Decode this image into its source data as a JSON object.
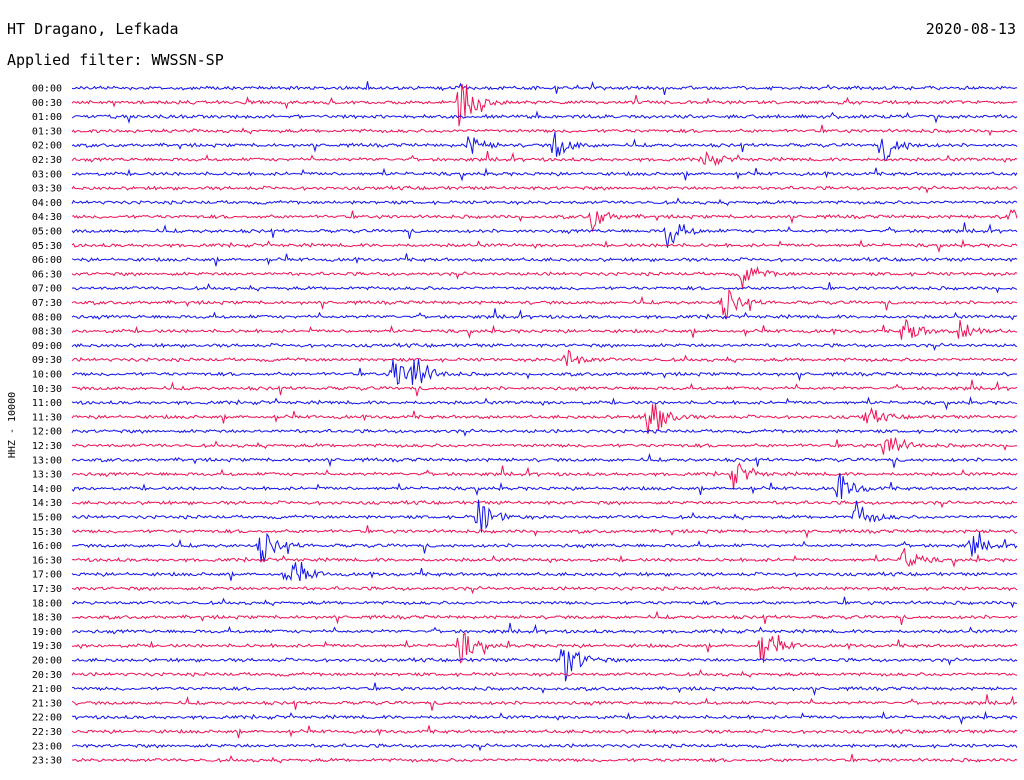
{
  "header": {
    "station": "HT Dragano, Lefkada",
    "date": "2020-08-13",
    "filter": "Applied filter: WWSSN-SP"
  },
  "chart_data": {
    "type": "line",
    "ylabel": "HHZ - 10000",
    "row_labels": [
      "00:00",
      "00:30",
      "01:00",
      "01:30",
      "02:00",
      "02:30",
      "03:00",
      "03:30",
      "04:00",
      "04:30",
      "05:00",
      "05:30",
      "06:00",
      "06:30",
      "07:00",
      "07:30",
      "08:00",
      "08:30",
      "09:00",
      "09:30",
      "10:00",
      "10:30",
      "11:00",
      "11:30",
      "12:00",
      "12:30",
      "13:00",
      "13:30",
      "14:00",
      "14:30",
      "15:00",
      "15:30",
      "16:00",
      "16:30",
      "17:00",
      "17:30",
      "18:00",
      "18:30",
      "19:00",
      "19:30",
      "20:00",
      "20:30",
      "21:00",
      "21:30",
      "22:00",
      "22:30",
      "23:00",
      "23:30"
    ],
    "series_colors": [
      "#1111ee",
      "#ee1155"
    ],
    "events": [
      {
        "row": 1,
        "x": 0.41,
        "amp": 1.0
      },
      {
        "row": 4,
        "x": 0.42,
        "amp": 0.35
      },
      {
        "row": 4,
        "x": 0.51,
        "amp": 0.5
      },
      {
        "row": 4,
        "x": 0.86,
        "amp": 0.6
      },
      {
        "row": 5,
        "x": 0.67,
        "amp": 0.3
      },
      {
        "row": 9,
        "x": 0.55,
        "amp": 0.5
      },
      {
        "row": 9,
        "x": 0.99,
        "amp": 0.35
      },
      {
        "row": 10,
        "x": 0.63,
        "amp": 0.6
      },
      {
        "row": 13,
        "x": 0.71,
        "amp": 0.5
      },
      {
        "row": 15,
        "x": 0.69,
        "amp": 0.6
      },
      {
        "row": 17,
        "x": 0.88,
        "amp": 0.55
      },
      {
        "row": 17,
        "x": 0.94,
        "amp": 0.4
      },
      {
        "row": 19,
        "x": 0.52,
        "amp": 0.45
      },
      {
        "row": 20,
        "x": 0.34,
        "amp": 0.7
      },
      {
        "row": 20,
        "x": 0.36,
        "amp": 0.8
      },
      {
        "row": 23,
        "x": 0.61,
        "amp": 1.0
      },
      {
        "row": 23,
        "x": 0.84,
        "amp": 0.4
      },
      {
        "row": 25,
        "x": 0.86,
        "amp": 0.7
      },
      {
        "row": 27,
        "x": 0.7,
        "amp": 0.5
      },
      {
        "row": 28,
        "x": 0.81,
        "amp": 0.6
      },
      {
        "row": 30,
        "x": 0.43,
        "amp": 0.7
      },
      {
        "row": 30,
        "x": 0.83,
        "amp": 0.6
      },
      {
        "row": 32,
        "x": 0.2,
        "amp": 0.6
      },
      {
        "row": 32,
        "x": 0.95,
        "amp": 0.4
      },
      {
        "row": 33,
        "x": 0.88,
        "amp": 0.4
      },
      {
        "row": 34,
        "x": 0.23,
        "amp": 0.7
      },
      {
        "row": 39,
        "x": 0.41,
        "amp": 0.6
      },
      {
        "row": 39,
        "x": 0.73,
        "amp": 0.8
      },
      {
        "row": 40,
        "x": 0.52,
        "amp": 0.9
      }
    ]
  }
}
